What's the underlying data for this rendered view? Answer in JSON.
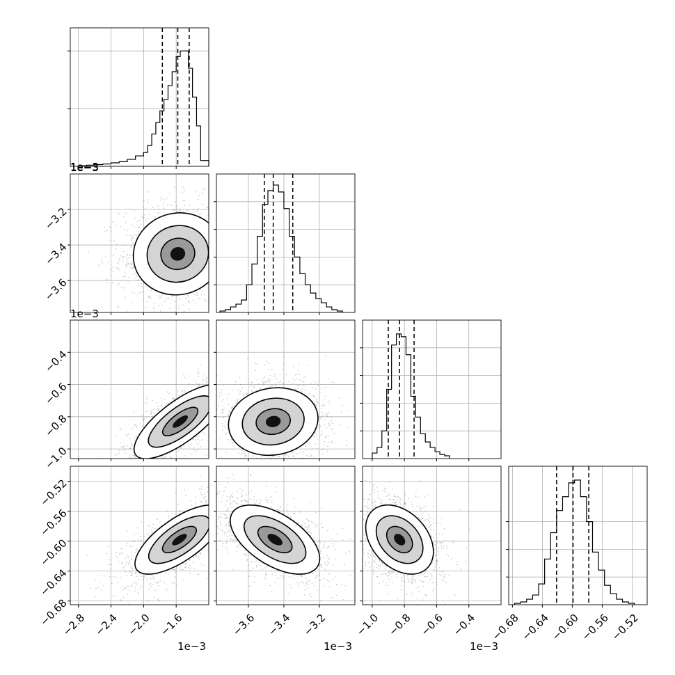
{
  "figure": {
    "type": "corner-plot",
    "colors": {
      "hist": "#000000",
      "grid": "#b0b0b0",
      "scatter": "#777777",
      "density": "#000000",
      "background": "#ffffff"
    }
  },
  "chart_data": {
    "type": "corner",
    "params": [
      {
        "range": [
          -2.9,
          -1.2
        ],
        "ticks": [
          -2.8,
          -2.4,
          -2.0,
          -1.6
        ],
        "tick_labels": [
          "−2.8",
          "−2.4",
          "−2.0",
          "−1.6"
        ],
        "scale_label": "1e−3",
        "quantiles": [
          -1.77,
          -1.58,
          -1.44
        ],
        "hist": {
          "edges": [
            -2.8,
            -2.7,
            -2.6,
            -2.5,
            -2.4,
            -2.3,
            -2.2,
            -2.1,
            -2.0,
            -1.95,
            -1.9,
            -1.85,
            -1.8,
            -1.75,
            -1.7,
            -1.65,
            -1.6,
            -1.55,
            -1.5,
            -1.45,
            -1.4,
            -1.35,
            -1.3,
            -1.2
          ],
          "counts": [
            0.5,
            1,
            1.5,
            2,
            3,
            4,
            6,
            9,
            12,
            18,
            28,
            38,
            48,
            58,
            70,
            82,
            95,
            100,
            100,
            85,
            60,
            35,
            5
          ],
          "ylim": [
            0,
            120
          ],
          "yticks": [
            50,
            100
          ]
        }
      },
      {
        "range": [
          -3.78,
          -3.0
        ],
        "ticks": [
          -3.6,
          -3.4,
          -3.2
        ],
        "tick_labels": [
          "−3.6",
          "−3.4",
          "−3.2"
        ],
        "scale_label": "1e−3",
        "quantiles": [
          -3.51,
          -3.46,
          -3.35
        ],
        "hist": {
          "edges": [
            -3.76,
            -3.73,
            -3.7,
            -3.67,
            -3.64,
            -3.61,
            -3.58,
            -3.55,
            -3.52,
            -3.49,
            -3.46,
            -3.43,
            -3.4,
            -3.37,
            -3.34,
            -3.31,
            -3.28,
            -3.25,
            -3.22,
            -3.19,
            -3.16,
            -3.13,
            -3.1,
            -3.07
          ],
          "counts": [
            1,
            2,
            4,
            6,
            9,
            20,
            35,
            55,
            78,
            88,
            92,
            87,
            75,
            55,
            40,
            28,
            20,
            14,
            10,
            7,
            4,
            2,
            1
          ],
          "ylim": [
            0,
            100
          ],
          "yticks": [
            20,
            40,
            60,
            80
          ]
        }
      },
      {
        "range": [
          -1.06,
          -0.2
        ],
        "ticks": [
          -1.0,
          -0.8,
          -0.6,
          -0.4
        ],
        "tick_labels": [
          "−1.0",
          "−0.8",
          "−0.6",
          "−0.4"
        ],
        "scale_label": "1e−3",
        "quantiles": [
          -0.9,
          -0.83,
          -0.74
        ],
        "hist": {
          "edges": [
            -1.0,
            -0.97,
            -0.94,
            -0.91,
            -0.88,
            -0.85,
            -0.82,
            -0.79,
            -0.76,
            -0.73,
            -0.7,
            -0.67,
            -0.64,
            -0.61,
            -0.58,
            -0.55,
            -0.52
          ],
          "counts": [
            4,
            8,
            20,
            50,
            82,
            90,
            88,
            75,
            45,
            30,
            18,
            12,
            8,
            5,
            3,
            2
          ],
          "ylim": [
            0,
            100
          ],
          "yticks": [
            20,
            40,
            60,
            80
          ]
        }
      },
      {
        "range": [
          -0.685,
          -0.5
        ],
        "ticks": [
          -0.68,
          -0.64,
          -0.6,
          -0.56,
          -0.52
        ],
        "tick_labels": [
          "−0.68",
          "−0.64",
          "−0.60",
          "−0.56",
          "−0.52"
        ],
        "scale_label": "",
        "quantiles": [
          -0.621,
          -0.599,
          -0.578
        ],
        "hist": {
          "edges": [
            -0.677,
            -0.669,
            -0.661,
            -0.653,
            -0.645,
            -0.637,
            -0.629,
            -0.621,
            -0.613,
            -0.605,
            -0.597,
            -0.589,
            -0.581,
            -0.573,
            -0.565,
            -0.557,
            -0.549,
            -0.541,
            -0.533,
            -0.525,
            -0.517
          ],
          "counts": [
            1,
            2,
            4,
            7,
            15,
            33,
            52,
            68,
            78,
            88,
            90,
            78,
            60,
            38,
            25,
            14,
            8,
            4,
            2,
            1
          ],
          "ylim": [
            0,
            100
          ],
          "yticks": [
            20,
            40,
            60
          ]
        }
      }
    ],
    "pairs": [
      {
        "row": 1,
        "col": 0,
        "center": [
          -1.58,
          -3.45
        ],
        "sd": [
          0.26,
          0.11
        ],
        "rho": 0.05
      },
      {
        "row": 2,
        "col": 0,
        "center": [
          -1.55,
          -0.83
        ],
        "sd": [
          0.27,
          0.11
        ],
        "rho": 0.75
      },
      {
        "row": 2,
        "col": 1,
        "center": [
          -3.46,
          -0.83
        ],
        "sd": [
          0.12,
          0.1
        ],
        "rho": 0.1
      },
      {
        "row": 3,
        "col": 0,
        "center": [
          -1.56,
          -0.598
        ],
        "sd": [
          0.26,
          0.022
        ],
        "rho": 0.7
      },
      {
        "row": 3,
        "col": 1,
        "center": [
          -3.45,
          -0.598
        ],
        "sd": [
          0.12,
          0.022
        ],
        "rho": -0.55
      },
      {
        "row": 3,
        "col": 2,
        "center": [
          -0.83,
          -0.598
        ],
        "sd": [
          0.1,
          0.022
        ],
        "rho": -0.35
      }
    ]
  }
}
